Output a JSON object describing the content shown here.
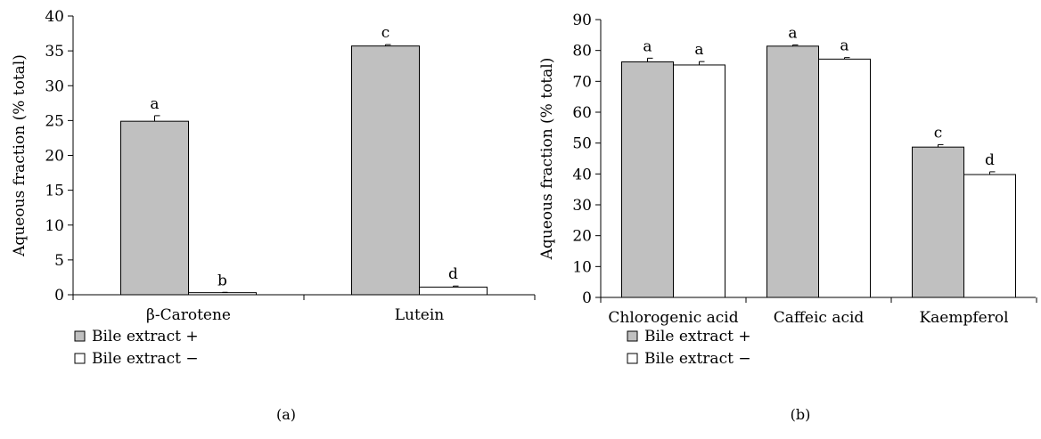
{
  "colors": {
    "bile_plus": "#c0c0c0",
    "bile_minus": "#ffffff",
    "stroke": "#000000"
  },
  "chart_data": [
    {
      "type": "bar",
      "panel_label": "(a)",
      "ylabel": "Aqueous fraction (% total)",
      "xlabel": "",
      "ylim": [
        0,
        40
      ],
      "yticks": [
        0,
        5,
        10,
        15,
        20,
        25,
        30,
        35,
        40
      ],
      "categories": [
        "β-Carotene",
        "Lutein"
      ],
      "series": [
        {
          "name": "Bile extract +",
          "values": [
            24.9,
            35.7
          ],
          "errors": [
            0.8,
            0.2
          ],
          "labels": [
            "a",
            "c"
          ]
        },
        {
          "name": "Bile extract −",
          "values": [
            0.3,
            1.1
          ],
          "errors": [
            0.05,
            0.15
          ],
          "labels": [
            "b",
            "d"
          ]
        }
      ],
      "legend": "bottom-left",
      "grid": false
    },
    {
      "type": "bar",
      "panel_label": "(b)",
      "ylabel": "Aqueous fraction (% total)",
      "xlabel": "",
      "ylim": [
        0,
        90
      ],
      "yticks": [
        0,
        10,
        20,
        30,
        40,
        50,
        60,
        70,
        80,
        90
      ],
      "categories": [
        "Chlorogenic acid",
        "Caffeic acid",
        "Kaempferol"
      ],
      "series": [
        {
          "name": "Bile extract +",
          "values": [
            76.3,
            81.4,
            48.7
          ],
          "errors": [
            1.2,
            0.4,
            0.8
          ],
          "labels": [
            "a",
            "a",
            "c"
          ]
        },
        {
          "name": "Bile extract −",
          "values": [
            75.3,
            77.2,
            39.8
          ],
          "errors": [
            1.1,
            0.5,
            0.9
          ],
          "labels": [
            "a",
            "a",
            "d"
          ]
        }
      ],
      "legend": "bottom-left",
      "grid": false
    }
  ]
}
